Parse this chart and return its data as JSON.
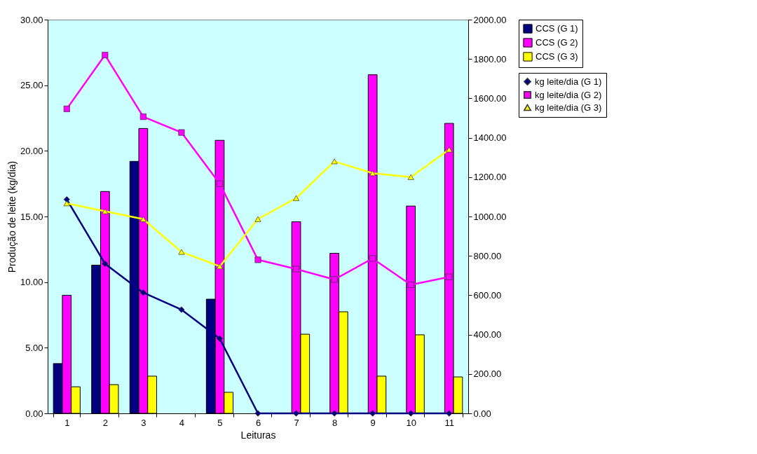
{
  "chart_data": {
    "type": "bar",
    "xlabel": "Leituras",
    "ylabel": "Produção de leite (kg/dia)",
    "categories": [
      "1",
      "2",
      "3",
      "4",
      "5",
      "6",
      "7",
      "8",
      "9",
      "10",
      "11"
    ],
    "ylim": [
      0,
      30
    ],
    "yticks": [
      {
        "value": 0,
        "label": "0.00"
      },
      {
        "value": 5,
        "label": "5.00"
      },
      {
        "value": 10,
        "label": "10.00"
      },
      {
        "value": 15,
        "label": "15.00"
      },
      {
        "value": 20,
        "label": "20.00"
      },
      {
        "value": 25,
        "label": "25.00"
      },
      {
        "value": 30,
        "label": "30.00"
      }
    ],
    "y2lim": [
      0,
      2000
    ],
    "y2ticks": [
      {
        "value": 0,
        "label": "0.00"
      },
      {
        "value": 200,
        "label": "200.00"
      },
      {
        "value": 400,
        "label": "400.00"
      },
      {
        "value": 600,
        "label": "600.00"
      },
      {
        "value": 800,
        "label": "800.00"
      },
      {
        "value": 1000,
        "label": "1000.00"
      },
      {
        "value": 1200,
        "label": "1200.00"
      },
      {
        "value": 1400,
        "label": "1400.00"
      },
      {
        "value": 1600,
        "label": "1600.00"
      },
      {
        "value": 1800,
        "label": "1800.00"
      },
      {
        "value": 2000,
        "label": "2000.00"
      }
    ],
    "grid": false,
    "legend": "right",
    "series": [
      {
        "name": "CCS (G 1)",
        "type": "bar",
        "axis": "y2",
        "color": "#000080",
        "values": [
          253,
          753,
          1280,
          null,
          580,
          null,
          null,
          null,
          null,
          null,
          null
        ]
      },
      {
        "name": "CCS (G 2)",
        "type": "bar",
        "axis": "y2",
        "color": "#ff00ff",
        "values": [
          600,
          1127,
          1447,
          null,
          1387,
          null,
          973,
          813,
          1720,
          1053,
          1473
        ]
      },
      {
        "name": "CCS (G 3)",
        "type": "bar",
        "axis": "y2",
        "color": "#ffff00",
        "values": [
          135,
          146,
          189,
          null,
          107,
          null,
          402,
          516,
          189,
          399,
          185
        ]
      },
      {
        "name": "kg leite/dia (G 1)",
        "type": "line",
        "marker": "diamond",
        "color": "#000080",
        "values": [
          16.3,
          11.4,
          9.2,
          7.9,
          5.7,
          0,
          0,
          0,
          0,
          0,
          0
        ]
      },
      {
        "name": "kg leite/dia (G 2)",
        "type": "line",
        "marker": "square",
        "color": "#ff00ff",
        "values": [
          23.2,
          27.3,
          22.6,
          21.4,
          17.5,
          11.7,
          11.0,
          10.2,
          11.8,
          9.8,
          10.4
        ]
      },
      {
        "name": "kg leite/dia (G 3)",
        "type": "line",
        "marker": "triangle",
        "color": "#ffff00",
        "values": [
          16.0,
          15.4,
          14.8,
          12.3,
          11.2,
          14.8,
          16.4,
          19.2,
          18.3,
          18.0,
          20.1
        ]
      }
    ]
  }
}
